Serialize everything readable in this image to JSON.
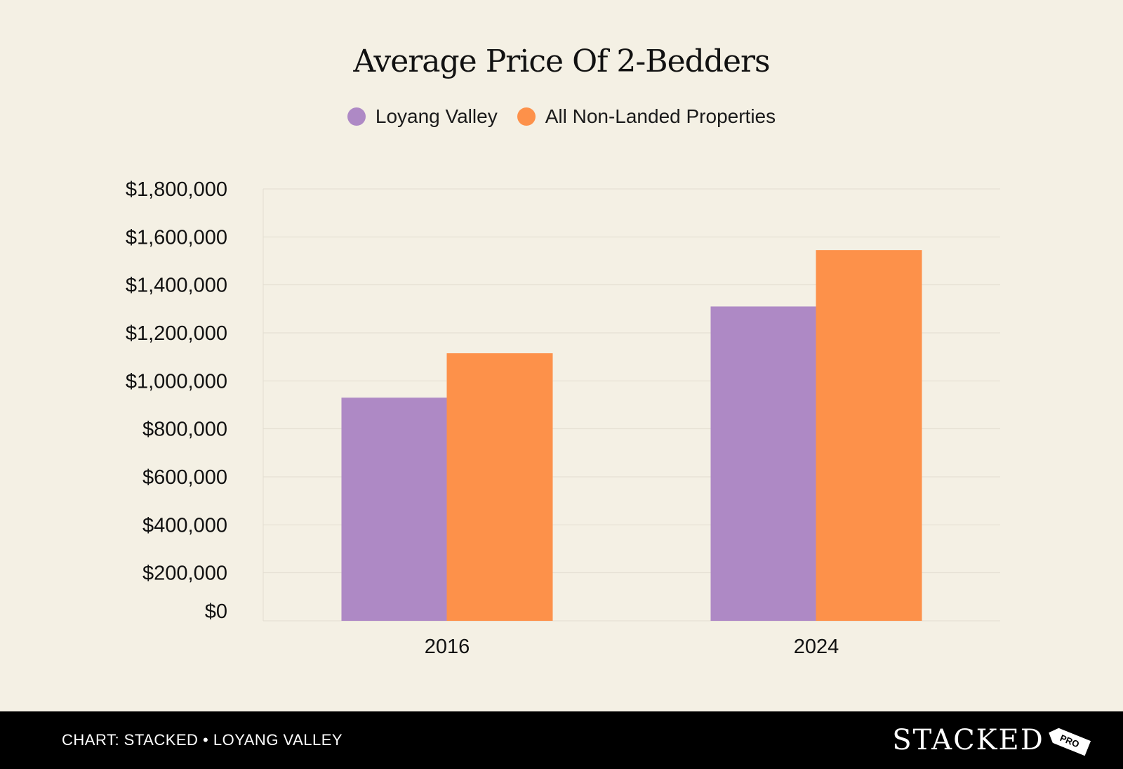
{
  "chart_data": {
    "type": "bar",
    "title": "Average Price Of 2-Bedders",
    "categories": [
      "2016",
      "2024"
    ],
    "series": [
      {
        "name": "Loyang Valley",
        "color": "#ae89c5",
        "values": [
          930000,
          1310000
        ]
      },
      {
        "name": "All Non-Landed Properties",
        "color": "#fd914a",
        "values": [
          1115000,
          1545000
        ]
      }
    ],
    "ylim": [
      0,
      1800000
    ],
    "yticks": [
      0,
      200000,
      400000,
      600000,
      800000,
      1000000,
      1200000,
      1400000,
      1600000,
      1800000
    ],
    "ytick_labels": [
      "$0",
      "$200,000",
      "$400,000",
      "$600,000",
      "$800,000",
      "$1,000,000",
      "$1,200,000",
      "$1,400,000",
      "$1,600,000",
      "$1,800,000"
    ],
    "xlabel": "",
    "ylabel": "",
    "grid": true,
    "legend_position": "top-center"
  },
  "footer": {
    "caption": "CHART: STACKED • LOYANG VALLEY",
    "brand": "STACKED",
    "brand_tag": "PRO"
  }
}
